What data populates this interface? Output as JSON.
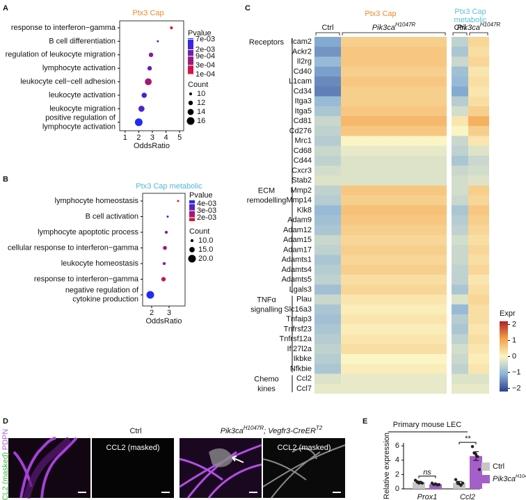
{
  "panel_labels": [
    "A",
    "B",
    "C",
    "D",
    "E"
  ],
  "chart_data": [
    {
      "type": "dotplot",
      "title": "Ptx3 Cap",
      "title_color": "#f0892b",
      "x_label": "OddsRatio",
      "categories": [
        "response to interferon−gamma",
        "B cell differentiation",
        "regulation of leukocyte migration",
        "lymphocyte activation",
        "leukocyte cell−cell adhesion",
        "leukocyte activation",
        "leukocyte migration",
        "positive regulation of lymphocyte activation"
      ],
      "values": [
        4.4,
        3.4,
        2.9,
        2.8,
        2.7,
        2.4,
        2.2,
        2.0
      ],
      "pvalue": [
        0.0001,
        0.002,
        0.0009,
        0.002,
        0.0004,
        0.004,
        0.003,
        0.007
      ],
      "count": [
        10,
        9,
        12,
        12,
        15,
        13,
        14,
        16
      ],
      "xlim": [
        0.6,
        5.3
      ],
      "xticks": [
        1,
        2,
        3,
        4,
        5
      ],
      "pvalue_title": "Pvalue",
      "pvalue_log": true,
      "pvalue_lim": [
        0.0001,
        0.008
      ],
      "pvalue_ticks": [
        {
          "value": 0.007,
          "label": "7e-03"
        },
        {
          "value": 0.002,
          "label": "2e-03"
        },
        {
          "value": 0.0009,
          "label": "9e-04"
        },
        {
          "value": 0.0003,
          "label": "3e-04"
        },
        {
          "value": 0.0001,
          "label": "1e-04"
        }
      ],
      "pvalue_colors": [
        "#e8112d",
        "#1c2bff"
      ],
      "count_title": "Count",
      "count_lim": [
        9,
        16
      ],
      "count_ticks": [
        10,
        12,
        14,
        16
      ]
    },
    {
      "type": "dotplot",
      "title": "Ptx3 Cap metabolic",
      "title_color": "#4fb8d3",
      "x_label": "OddsRatio",
      "categories": [
        "lymphocyte homeostasis",
        "B cell activation",
        "lymphocyte apoptotic process",
        "cellular response to interferon−gamma",
        "leukocyte homeostasis",
        "response to interferon−gamma",
        "negative regulation of cytokine production"
      ],
      "values": [
        3.52,
        2.92,
        2.84,
        2.76,
        2.72,
        2.68,
        1.92
      ],
      "pvalue": [
        0.0016,
        0.0042,
        0.003,
        0.0025,
        0.003,
        0.002,
        0.0044
      ],
      "count": [
        8,
        8,
        10,
        12,
        10,
        13,
        20
      ],
      "xlim": [
        1.48,
        3.92
      ],
      "xticks": [
        2,
        3
      ],
      "pvalue_title": "Pvalue",
      "pvalue_log": false,
      "pvalue_lim": [
        0.0015,
        0.0045
      ],
      "pvalue_ticks": [
        {
          "value": 0.004,
          "label": "4e-03"
        },
        {
          "value": 0.003,
          "label": "3e-03"
        },
        {
          "value": 0.002,
          "label": "2e-03"
        }
      ],
      "pvalue_colors": [
        "#e8112d",
        "#1c2bff"
      ],
      "count_title": "Count",
      "count_lim": [
        8,
        20
      ],
      "count_ticks": [
        {
          "value": 10,
          "label": "10.0"
        },
        {
          "value": 15,
          "label": "15.0"
        },
        {
          "value": 20,
          "label": "20.0"
        }
      ]
    },
    {
      "type": "heatmap",
      "column_groups": [
        {
          "title": [
            "Ptx3 Cap"
          ],
          "color": "#f0892b",
          "columns": [
            {
              "text": "Ctrl"
            },
            {
              "text": "Pik3ca",
              "sup": "H1047R"
            }
          ]
        },
        {
          "title": [
            "Ptx3 Cap",
            "metabolic"
          ],
          "color": "#5bbfd6",
          "columns": [
            {
              "text": "Ctrl"
            },
            {
              "text": "Pik3ca",
              "sup": "H1047R"
            }
          ]
        }
      ],
      "row_groups": [
        {
          "name": [
            "Receptors"
          ],
          "rows": [
            "Icam2",
            "Ackr2",
            "Il2rg",
            "Cd40",
            "L1cam",
            "Cd34",
            "Itga3",
            "Itga5",
            "Cd81",
            "Cd276",
            "Mrc1",
            "Cd68",
            "Cd44",
            "Cxcr3",
            "Stab2"
          ],
          "values": [
            [
              -1.2,
              0.5,
              -0.6,
              0.4
            ],
            [
              -1.4,
              0.6,
              -0.8,
              0.3
            ],
            [
              -1.0,
              0.6,
              -0.5,
              0.4
            ],
            [
              -1.3,
              0.5,
              -0.9,
              0.2
            ],
            [
              -1.5,
              0.6,
              -1.0,
              0.3
            ],
            [
              -1.6,
              0.5,
              -1.2,
              0.2
            ],
            [
              -1.0,
              0.5,
              -0.7,
              0.3
            ],
            [
              -0.8,
              0.6,
              -0.4,
              0.5
            ],
            [
              -0.5,
              0.8,
              0.2,
              0.9
            ],
            [
              -0.6,
              0.6,
              0.0,
              0.5
            ],
            [
              -0.7,
              0.0,
              -0.5,
              0.2
            ],
            [
              -0.5,
              -0.2,
              -0.6,
              -0.3
            ],
            [
              -0.6,
              -0.3,
              -0.8,
              -0.5
            ],
            [
              -0.4,
              -0.3,
              -0.5,
              -0.4
            ],
            [
              -0.3,
              -0.3,
              -0.4,
              -0.3
            ]
          ]
        },
        {
          "name": [
            "ECM",
            "remodelling"
          ],
          "rows": [
            "Mmp2",
            "Mmp14",
            "Klk8",
            "Adam9",
            "Adam12",
            "Adam15",
            "Adam17",
            "Adamts1",
            "Adamts4",
            "Adamts5",
            "Lgals3"
          ],
          "values": [
            [
              -0.6,
              0.6,
              -0.4,
              0.5
            ],
            [
              -0.7,
              0.5,
              -0.5,
              0.4
            ],
            [
              -1.0,
              0.7,
              -0.8,
              0.6
            ],
            [
              -0.9,
              0.6,
              -0.7,
              0.5
            ],
            [
              -0.8,
              0.5,
              -0.6,
              0.4
            ],
            [
              -0.5,
              0.4,
              -0.4,
              0.3
            ],
            [
              -0.6,
              0.5,
              -0.5,
              0.4
            ],
            [
              -0.8,
              0.4,
              -0.5,
              0.3
            ],
            [
              -0.7,
              0.5,
              -0.6,
              0.4
            ],
            [
              -0.6,
              0.3,
              -0.6,
              0.2
            ],
            [
              -0.9,
              0.4,
              -0.8,
              0.3
            ]
          ]
        },
        {
          "name": [
            "TNFα",
            "signalling"
          ],
          "rows": [
            "Plau",
            "Slc16a3",
            "Tnfaip3",
            "Tnfrsf23",
            "Tnfrsf12a",
            "Ifi27l2a",
            "Ikbke",
            "Nfkbie"
          ],
          "values": [
            [
              -0.5,
              0.2,
              -0.3,
              0.4
            ],
            [
              -0.8,
              0.1,
              -1.0,
              0.3
            ],
            [
              -0.9,
              0.2,
              -0.7,
              0.3
            ],
            [
              -0.8,
              0.1,
              -0.8,
              0.2
            ],
            [
              -0.7,
              0.2,
              -0.6,
              0.3
            ],
            [
              -0.6,
              0.3,
              -0.4,
              0.2
            ],
            [
              -0.7,
              0.0,
              -0.5,
              0.1
            ],
            [
              -0.8,
              0.1,
              -0.6,
              0.2
            ]
          ]
        },
        {
          "name": [
            "Chemo",
            "kines"
          ],
          "rows": [
            "Ccl2",
            "Ccl7"
          ],
          "values": [
            [
              -0.3,
              -0.2,
              -0.3,
              -0.3
            ],
            [
              -0.2,
              -0.2,
              -0.2,
              -0.2
            ]
          ]
        }
      ],
      "color_title": "Expr",
      "clim": [
        -2.2,
        2.2
      ],
      "cticks": [
        2,
        1,
        0,
        {
          "value": -1,
          "label": "−1"
        },
        {
          "value": -2,
          "label": "−2"
        }
      ],
      "colors": [
        "#2c3f8f",
        "#8db5d8",
        "#fbf4c4",
        "#f3a24b",
        "#b2202b"
      ]
    },
    {
      "type": "bar",
      "title": "Primary mouse LEC",
      "y_label": "Relative expression",
      "categories": [
        "Prox1",
        "Ccl2"
      ],
      "series": [
        {
          "name": "Ctrl",
          "color": "#c6c6c6",
          "values": [
            0.94,
            0.84
          ],
          "errors": [
            0.13,
            0.2
          ],
          "points": [
            [
              1.2,
              1.0,
              0.8,
              0.9,
              0.8
            ],
            [
              1.3,
              0.9,
              0.7,
              0.5,
              0.8
            ]
          ]
        },
        {
          "name": "Pik3ca",
          "name_sup": "H1047R",
          "color": "#a55fc8",
          "values": [
            0.65,
            4.58
          ],
          "errors": [
            0.08,
            0.6
          ],
          "points": [
            [
              0.8,
              0.6,
              0.7,
              0.55,
              0.6
            ],
            [
              5.9,
              5.0,
              4.8,
              4.5,
              2.7
            ]
          ]
        }
      ],
      "ylim": [
        0,
        6.4
      ],
      "yticks": [
        0,
        2,
        4,
        6
      ],
      "annotations": [
        "ns",
        "**"
      ]
    }
  ],
  "panel_d": {
    "ctrl_title": "Ctrl",
    "mutant_title": [
      "Pik3ca",
      "H1047R",
      "; Vegfr3-CreER",
      "T2"
    ],
    "masked_label": "CCL2 (masked)",
    "side_label": [
      "CCL2 (masked)",
      "PDPN"
    ]
  }
}
